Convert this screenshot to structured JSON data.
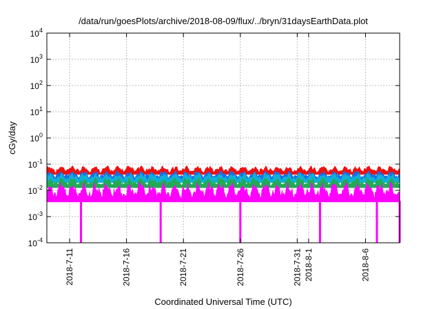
{
  "chart_data": {
    "type": "area",
    "title": "/data/run/goesPlots/archive/2018-08-09/flux/../bryn/31daysEarthData.plot",
    "xlabel": "Coordinated Universal Time (UTC)",
    "ylabel": "cGy/day",
    "yscale": "log",
    "ylim": [
      0.0001,
      10000
    ],
    "y_ticks": [
      {
        "base": "10",
        "exp": "-4"
      },
      {
        "base": "10",
        "exp": "-3"
      },
      {
        "base": "10",
        "exp": "-2"
      },
      {
        "base": "10",
        "exp": "-1"
      },
      {
        "base": "10",
        "exp": "0"
      },
      {
        "base": "10",
        "exp": "1"
      },
      {
        "base": "10",
        "exp": "2"
      },
      {
        "base": "10",
        "exp": "3"
      },
      {
        "base": "10",
        "exp": "4"
      }
    ],
    "xlim": [
      "2018-07-09",
      "2018-08-09"
    ],
    "x_ticks": [
      "2018-7-11",
      "2018-7-16",
      "2018-7-21",
      "2018-7-26",
      "2018-7-31",
      "2018-8-1",
      "2018-8-6"
    ],
    "grid": true,
    "legend": false,
    "series": [
      {
        "color": "#ee1111",
        "typical_range": [
          0.045,
          0.085
        ]
      },
      {
        "color": "#1a6fe0",
        "typical_range": [
          0.028,
          0.055
        ]
      },
      {
        "color": "#10b0d8",
        "typical_range": [
          0.022,
          0.045
        ]
      },
      {
        "color": "#22aa55",
        "typical_range": [
          0.014,
          0.03
        ]
      },
      {
        "color": "#ff00ff",
        "typical_range": [
          0.004,
          0.02
        ],
        "dropouts": [
          "2018-07-12",
          "2018-07-19",
          "2018-07-26",
          "2018-08-02",
          "2018-08-07",
          "2018-08-09"
        ]
      }
    ]
  }
}
